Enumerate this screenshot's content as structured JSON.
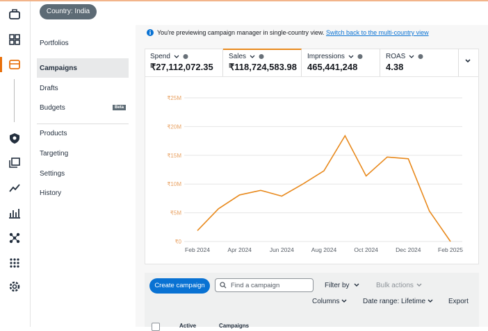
{
  "header": {
    "country": "Country: India"
  },
  "sidebar": {
    "items": [
      "Portfolios",
      "Campaigns",
      "Drafts",
      "Budgets",
      "Products",
      "Targeting",
      "Settings",
      "History"
    ],
    "badge": "Beta"
  },
  "notice": {
    "text": "You're previewing campaign manager in single-country view.",
    "link": "Switch back to the multi-country view"
  },
  "metrics": [
    {
      "label": "Spend",
      "value": "₹27,112,072.35"
    },
    {
      "label": "Sales",
      "value": "₹118,724,583.98"
    },
    {
      "label": "Impressions",
      "value": "465,441,248"
    },
    {
      "label": "ROAS",
      "value": "4.38"
    }
  ],
  "chart_data": {
    "type": "line",
    "categories": [
      "Feb 2024",
      null,
      "Apr 2024",
      null,
      "Jun 2024",
      null,
      "Aug 2024",
      null,
      "Oct 2024",
      null,
      "Dec 2024",
      null,
      "Feb 2025"
    ],
    "values": [
      1900000,
      5700000,
      8100000,
      8900000,
      7900000,
      10000000,
      12300000,
      18400000,
      11400000,
      14700000,
      14400000,
      5300000,
      0
    ],
    "color": "#e8891c",
    "ylim": [
      0,
      25000000
    ],
    "yticks": [
      {
        "value": 0,
        "label": "₹0"
      },
      {
        "value": 5000000,
        "label": "₹5M"
      },
      {
        "value": 10000000,
        "label": "₹10M"
      },
      {
        "value": 15000000,
        "label": "₹15M"
      },
      {
        "value": 20000000,
        "label": "₹20M"
      },
      {
        "value": 25000000,
        "label": "₹25M"
      }
    ],
    "grid": true
  },
  "toolbar": {
    "create": "Create campaign",
    "search": "Find a campaign",
    "filter": "Filter by",
    "bulk": "Bulk actions",
    "columns": "Columns",
    "date_range": "Date range: Lifetime",
    "export": "Export"
  },
  "table": {
    "columns": [
      "Active",
      "Campaigns"
    ]
  }
}
